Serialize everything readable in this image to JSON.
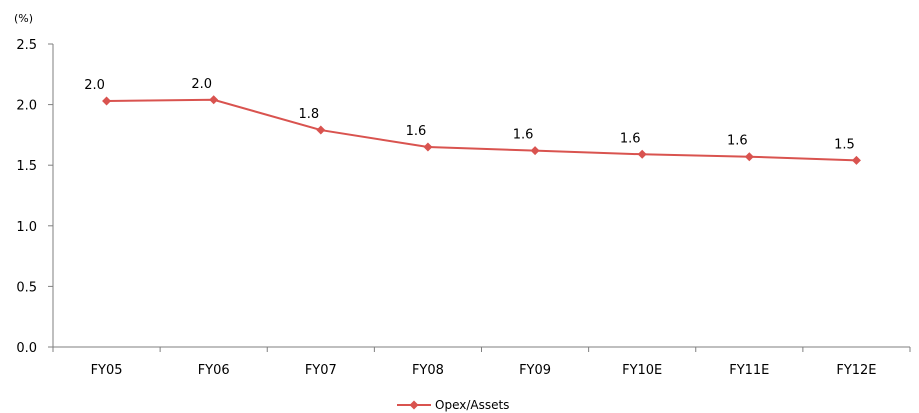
{
  "chart_data": {
    "type": "line",
    "unit_label": "(%)",
    "categories": [
      "FY05",
      "FY06",
      "FY07",
      "FY08",
      "FY09",
      "FY10E",
      "FY11E",
      "FY12E"
    ],
    "series": [
      {
        "name": "Opex/Assets",
        "values": [
          2.03,
          2.04,
          1.79,
          1.65,
          1.62,
          1.59,
          1.57,
          1.54
        ],
        "labels": [
          "2.0",
          "2.0",
          "1.8",
          "1.6",
          "1.6",
          "1.6",
          "1.6",
          "1.5"
        ],
        "color": "#d9534f"
      }
    ],
    "ylim": [
      0,
      2.5
    ],
    "yticks": [
      "0.0",
      "0.5",
      "1.0",
      "1.5",
      "2.0",
      "2.5"
    ],
    "grid": false,
    "legend_position": "bottom-center"
  }
}
